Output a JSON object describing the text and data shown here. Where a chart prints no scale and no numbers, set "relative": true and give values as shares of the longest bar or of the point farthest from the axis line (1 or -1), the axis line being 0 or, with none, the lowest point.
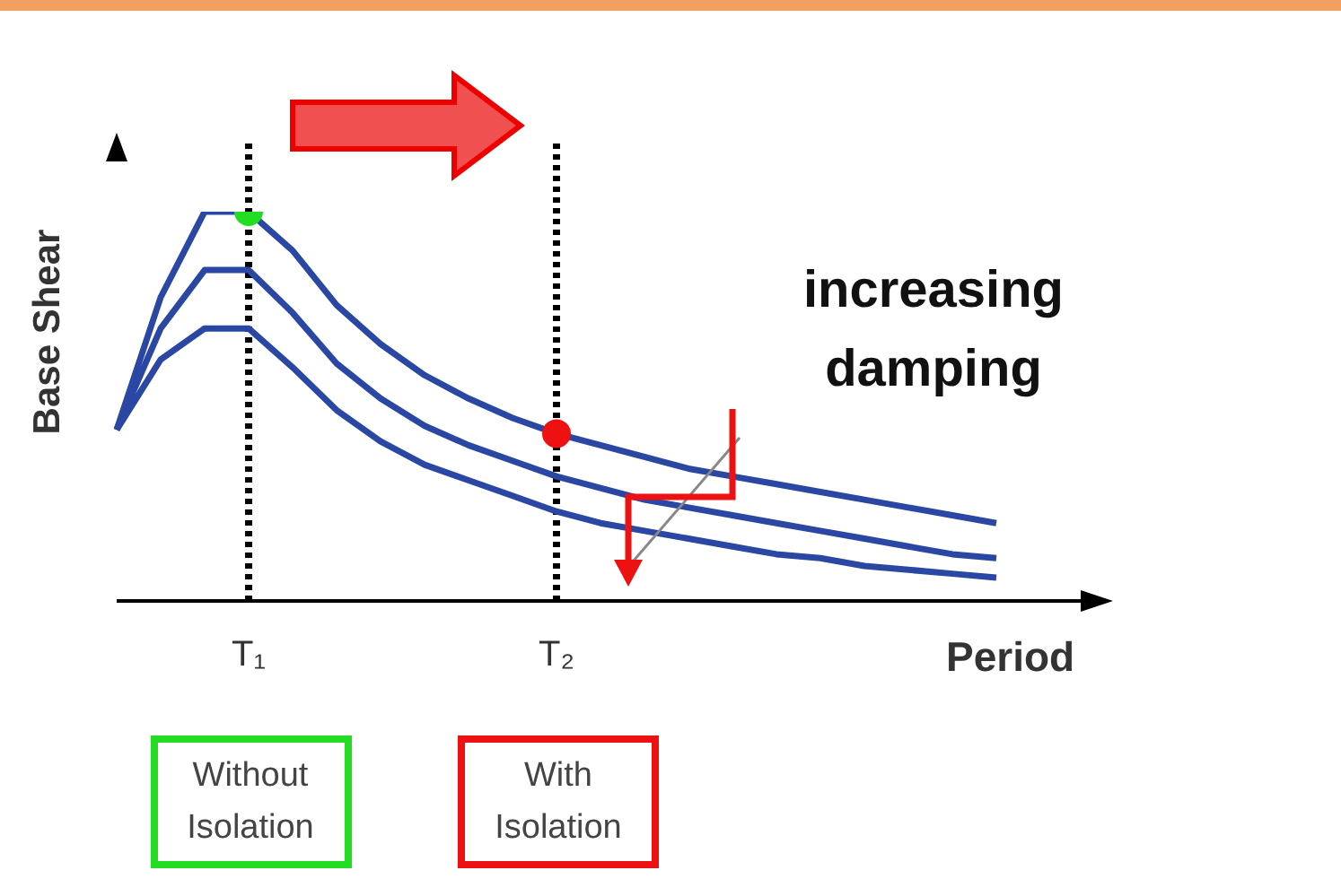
{
  "chart_data": {
    "type": "line",
    "relative": true,
    "xlabel": "Period",
    "ylabel": "Base Shear",
    "categories": [
      null,
      null,
      null,
      "T₁",
      null,
      null,
      null,
      null,
      null,
      null,
      "T₂",
      null,
      null,
      null,
      null,
      null,
      null,
      null,
      null,
      null,
      null
    ],
    "series": [
      {
        "color": "#2a47a3",
        "values": [
          0.44,
          0.78,
          1,
          1,
          0.9,
          0.76,
          0.66,
          0.58,
          0.52,
          0.47,
          0.43,
          0.4,
          0.37,
          0.34,
          0.32,
          0.3,
          0.28,
          0.26,
          0.24,
          0.22,
          0.2
        ]
      },
      {
        "color": "#2a47a3",
        "values": [
          0.44,
          0.7,
          0.85,
          0.85,
          0.74,
          0.61,
          0.52,
          0.45,
          0.4,
          0.36,
          0.32,
          0.29,
          0.26,
          0.24,
          0.22,
          0.2,
          0.18,
          0.16,
          0.14,
          0.12,
          0.11
        ]
      },
      {
        "color": "#2a47a3",
        "values": [
          0.44,
          0.62,
          0.7,
          0.7,
          0.6,
          0.49,
          0.41,
          0.35,
          0.31,
          0.27,
          0.23,
          0.2,
          0.18,
          0.16,
          0.14,
          0.12,
          0.11,
          0.09,
          0.08,
          0.07,
          0.06
        ]
      },
      {
        "type": "scatter",
        "marker": "circle",
        "color": "#22dd22",
        "x": [
          "T₁"
        ],
        "values": [
          1
        ]
      },
      {
        "type": "scatter",
        "marker": "circle",
        "color": "#ee1111",
        "x": [
          "T₂"
        ],
        "values": [
          0.43
        ]
      }
    ],
    "ref_lines": [
      {
        "axis": "x",
        "value": "T₁",
        "color": "#000000",
        "line_style": "dotted"
      },
      {
        "axis": "x",
        "value": "T₂",
        "color": "#000000",
        "line_style": "dotted"
      }
    ],
    "annotations": [
      "increasing damping",
      "Without Isolation",
      "With Isolation"
    ]
  }
}
